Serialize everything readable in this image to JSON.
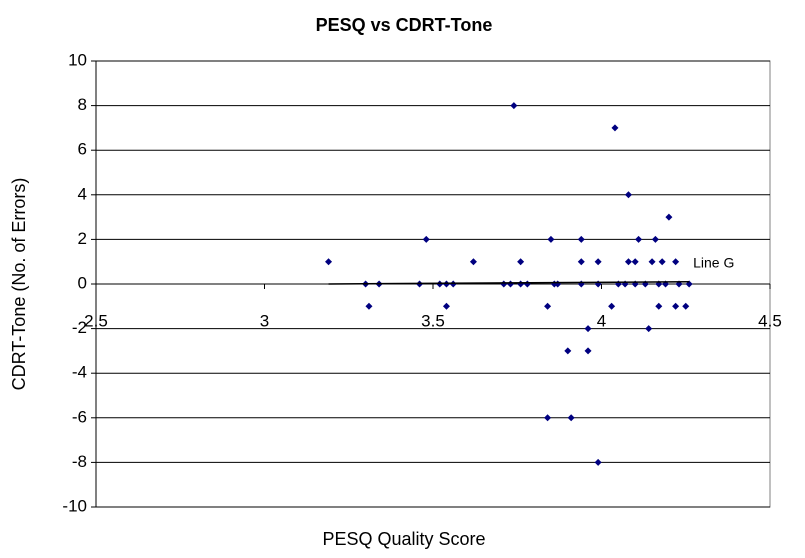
{
  "chart_data": {
    "type": "scatter",
    "title": "PESQ vs CDRT-Tone",
    "x_label": "PESQ Quality Score",
    "y_label": "CDRT-Tone (No. of Errors)",
    "xlim": [
      2.5,
      4.5
    ],
    "xticks": [
      2.5,
      3,
      3.5,
      4,
      4.5
    ],
    "ylim": [
      -10,
      10
    ],
    "yticks": [
      -10,
      -8,
      -6,
      -4,
      -2,
      0,
      2,
      4,
      6,
      8,
      10
    ],
    "grid": true,
    "series": [
      {
        "color": "#000080",
        "x": [
          3.19,
          3.3,
          3.31,
          3.34,
          3.46,
          3.48,
          3.52,
          3.54,
          3.54,
          3.56,
          3.62,
          3.71,
          3.73,
          3.74,
          3.76,
          3.76,
          3.78,
          3.84,
          3.85,
          3.84,
          3.86,
          3.87,
          3.9,
          3.91,
          3.94,
          3.94,
          3.94,
          3.96,
          3.96,
          3.99,
          3.99,
          3.99,
          4.03,
          4.04,
          4.05,
          4.07,
          4.08,
          4.08,
          4.1,
          4.1,
          4.11,
          4.13,
          4.14,
          4.15,
          4.16,
          4.17,
          4.17,
          4.18,
          4.19,
          4.2,
          4.22,
          4.22,
          4.23,
          4.25,
          4.26
        ],
        "y": [
          1,
          0,
          -1,
          0,
          0,
          2,
          0,
          0,
          -1,
          0,
          1,
          0,
          0,
          8,
          1,
          0,
          0,
          -1,
          2,
          -6,
          0,
          0,
          -3,
          -6,
          2,
          1,
          0,
          -2,
          -3,
          -8,
          1,
          0,
          -1,
          7,
          0,
          0,
          1,
          4,
          1,
          0,
          2,
          0,
          -2,
          1,
          2,
          0,
          -1,
          1,
          0,
          3,
          -1,
          1,
          0,
          -1,
          0
        ]
      }
    ],
    "trendline": {
      "name": "Line G",
      "color": "#000000",
      "x": [
        3.19,
        4.26
      ],
      "y": [
        0,
        0.1
      ]
    }
  }
}
